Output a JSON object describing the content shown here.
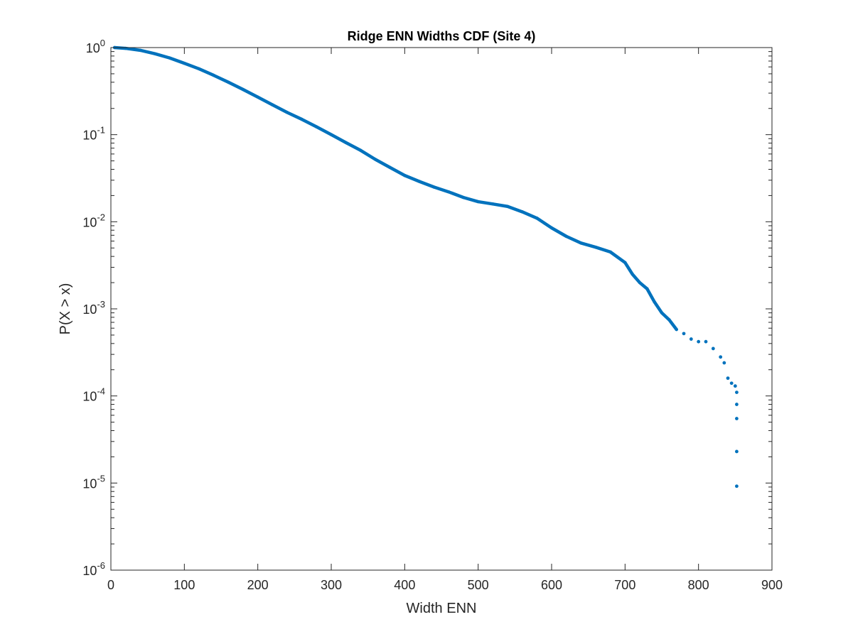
{
  "chart_data": {
    "type": "scatter",
    "title": "Ridge ENN Widths CDF (Site 4)",
    "xlabel": "Width ENN",
    "ylabel": "P(X > x)",
    "xlim": [
      0,
      900
    ],
    "ylim": [
      1e-06,
      1
    ],
    "yscale": "log",
    "grid": false,
    "legend": "none",
    "x_ticks": [
      {
        "value": 0,
        "label": "0"
      },
      {
        "value": 100,
        "label": "100"
      },
      {
        "value": 200,
        "label": "200"
      },
      {
        "value": 300,
        "label": "300"
      },
      {
        "value": 400,
        "label": "400"
      },
      {
        "value": 500,
        "label": "500"
      },
      {
        "value": 600,
        "label": "600"
      },
      {
        "value": 700,
        "label": "700"
      },
      {
        "value": 800,
        "label": "800"
      },
      {
        "value": 900,
        "label": "900"
      }
    ],
    "y_ticks": [
      {
        "value": 1,
        "base": "10",
        "exp": "0"
      },
      {
        "value": 0.1,
        "base": "10",
        "exp": "-1"
      },
      {
        "value": 0.01,
        "base": "10",
        "exp": "-2"
      },
      {
        "value": 0.001,
        "base": "10",
        "exp": "-3"
      },
      {
        "value": 0.0001,
        "base": "10",
        "exp": "-4"
      },
      {
        "value": 1e-05,
        "base": "10",
        "exp": "-5"
      },
      {
        "value": 1e-06,
        "base": "10",
        "exp": "-6"
      }
    ],
    "series": [
      {
        "color": "#0072bd",
        "points": [
          [
            5,
            1.0
          ],
          [
            20,
            0.98
          ],
          [
            40,
            0.93
          ],
          [
            60,
            0.85
          ],
          [
            80,
            0.76
          ],
          [
            100,
            0.66
          ],
          [
            120,
            0.57
          ],
          [
            140,
            0.48
          ],
          [
            160,
            0.4
          ],
          [
            180,
            0.33
          ],
          [
            200,
            0.27
          ],
          [
            220,
            0.22
          ],
          [
            240,
            0.18
          ],
          [
            260,
            0.15
          ],
          [
            280,
            0.123
          ],
          [
            300,
            0.1
          ],
          [
            320,
            0.081
          ],
          [
            340,
            0.066
          ],
          [
            360,
            0.052
          ],
          [
            380,
            0.042
          ],
          [
            400,
            0.034
          ],
          [
            420,
            0.029
          ],
          [
            440,
            0.025
          ],
          [
            460,
            0.022
          ],
          [
            480,
            0.019
          ],
          [
            500,
            0.017
          ],
          [
            520,
            0.016
          ],
          [
            540,
            0.015
          ],
          [
            560,
            0.013
          ],
          [
            580,
            0.011
          ],
          [
            600,
            0.0085
          ],
          [
            620,
            0.0068
          ],
          [
            640,
            0.0057
          ],
          [
            660,
            0.0051
          ],
          [
            680,
            0.0045
          ],
          [
            700,
            0.0034
          ],
          [
            710,
            0.0025
          ],
          [
            720,
            0.002
          ],
          [
            730,
            0.0017
          ],
          [
            740,
            0.0012
          ],
          [
            750,
            0.0009
          ],
          [
            760,
            0.00075
          ],
          [
            770,
            0.00058
          ],
          [
            780,
            0.00052
          ],
          [
            790,
            0.00045
          ],
          [
            800,
            0.00042
          ],
          [
            810,
            0.00042
          ],
          [
            820,
            0.00035
          ],
          [
            830,
            0.00028
          ],
          [
            835,
            0.00024
          ],
          [
            840,
            0.00016
          ],
          [
            845,
            0.00014
          ],
          [
            850,
            0.00013
          ],
          [
            852,
            0.00011
          ],
          [
            852,
            8e-05
          ],
          [
            852,
            5.5e-05
          ],
          [
            852,
            2.3e-05
          ],
          [
            852,
            9.2e-06
          ]
        ]
      }
    ]
  }
}
